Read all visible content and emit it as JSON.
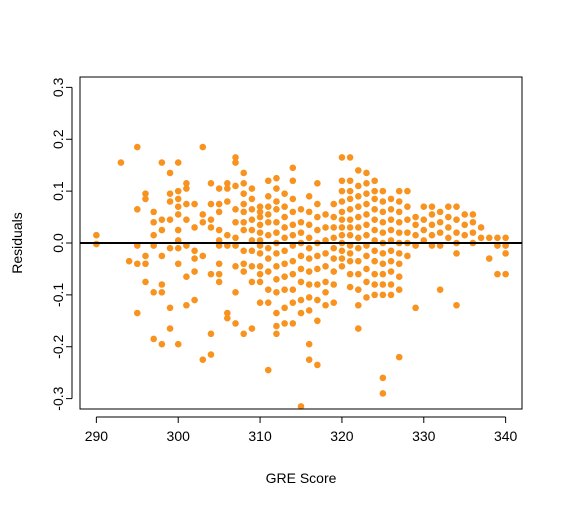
{
  "chart_data": {
    "type": "scatter",
    "title": "",
    "xlabel": "GRE Score",
    "ylabel": "Residuals",
    "xlim": [
      288,
      342
    ],
    "ylim": [
      -0.32,
      0.32
    ],
    "xticks": [
      290,
      300,
      310,
      320,
      330,
      340
    ],
    "yticks": [
      -0.3,
      -0.2,
      -0.1,
      0.0,
      0.1,
      0.2,
      0.3
    ],
    "xtick_labels": [
      "290",
      "300",
      "310",
      "320",
      "330",
      "340"
    ],
    "ytick_labels": [
      "-0.3",
      "-0.2",
      "-0.1",
      "0.0",
      "0.1",
      "0.2",
      "0.3"
    ],
    "grid": false,
    "legend": false,
    "reference_line": {
      "y": 0,
      "color": "#000000"
    },
    "point_color": "#F7931E",
    "points": [
      [
        290,
        0.015
      ],
      [
        290,
        -0.002
      ],
      [
        293,
        0.155
      ],
      [
        294,
        -0.035
      ],
      [
        295,
        0.185
      ],
      [
        295,
        0.065
      ],
      [
        295,
        -0.005
      ],
      [
        295,
        -0.04
      ],
      [
        295,
        -0.135
      ],
      [
        296,
        0.095
      ],
      [
        296,
        0.085
      ],
      [
        296,
        -0.025
      ],
      [
        296,
        -0.04
      ],
      [
        296,
        -0.075
      ],
      [
        297,
        0.06
      ],
      [
        297,
        0.04
      ],
      [
        297,
        0.015
      ],
      [
        297,
        -0.005
      ],
      [
        297,
        -0.095
      ],
      [
        297,
        -0.185
      ],
      [
        298,
        0.155
      ],
      [
        298,
        0.045
      ],
      [
        298,
        0.025
      ],
      [
        298,
        -0.025
      ],
      [
        298,
        -0.08
      ],
      [
        298,
        -0.095
      ],
      [
        298,
        -0.195
      ],
      [
        299,
        0.135
      ],
      [
        299,
        0.095
      ],
      [
        299,
        0.08
      ],
      [
        299,
        0.045
      ],
      [
        299,
        -0.01
      ],
      [
        299,
        -0.125
      ],
      [
        299,
        -0.165
      ],
      [
        300,
        0.155
      ],
      [
        300,
        0.1
      ],
      [
        300,
        0.085
      ],
      [
        300,
        0.07
      ],
      [
        300,
        0.055
      ],
      [
        300,
        0.025
      ],
      [
        300,
        0.005
      ],
      [
        300,
        -0.01
      ],
      [
        300,
        -0.04
      ],
      [
        300,
        -0.195
      ],
      [
        301,
        0.115
      ],
      [
        301,
        0.105
      ],
      [
        301,
        0.075
      ],
      [
        301,
        0.045
      ],
      [
        301,
        -0.005
      ],
      [
        301,
        -0.065
      ],
      [
        301,
        -0.12
      ],
      [
        302,
        0.075
      ],
      [
        302,
        0.03
      ],
      [
        302,
        -0.015
      ],
      [
        302,
        -0.03
      ],
      [
        302,
        -0.055
      ],
      [
        302,
        -0.11
      ],
      [
        303,
        0.185
      ],
      [
        303,
        0.055
      ],
      [
        303,
        0.04
      ],
      [
        303,
        -0.025
      ],
      [
        303,
        -0.225
      ],
      [
        304,
        0.115
      ],
      [
        304,
        0.075
      ],
      [
        304,
        0.045
      ],
      [
        304,
        0.03
      ],
      [
        304,
        -0.06
      ],
      [
        304,
        -0.175
      ],
      [
        304,
        -0.215
      ],
      [
        305,
        0.105
      ],
      [
        305,
        0.075
      ],
      [
        305,
        0.06
      ],
      [
        305,
        0.025
      ],
      [
        305,
        0.005
      ],
      [
        305,
        -0.005
      ],
      [
        305,
        -0.04
      ],
      [
        305,
        -0.06
      ],
      [
        305,
        -0.075
      ],
      [
        306,
        0.115
      ],
      [
        306,
        0.105
      ],
      [
        306,
        0.08
      ],
      [
        306,
        0.015
      ],
      [
        306,
        -0.005
      ],
      [
        306,
        -0.135
      ],
      [
        306,
        -0.145
      ],
      [
        307,
        0.165
      ],
      [
        307,
        0.155
      ],
      [
        307,
        0.11
      ],
      [
        307,
        0.065
      ],
      [
        307,
        0.04
      ],
      [
        307,
        0.01
      ],
      [
        307,
        -0.005
      ],
      [
        307,
        -0.045
      ],
      [
        307,
        -0.095
      ],
      [
        307,
        -0.155
      ],
      [
        308,
        0.135
      ],
      [
        308,
        0.115
      ],
      [
        308,
        0.095
      ],
      [
        308,
        0.075
      ],
      [
        308,
        0.06
      ],
      [
        308,
        0.04
      ],
      [
        308,
        0.025
      ],
      [
        308,
        -0.015
      ],
      [
        308,
        -0.04
      ],
      [
        308,
        -0.055
      ],
      [
        308,
        -0.175
      ],
      [
        309,
        0.105
      ],
      [
        309,
        0.085
      ],
      [
        309,
        0.065
      ],
      [
        309,
        0.045
      ],
      [
        309,
        0.025
      ],
      [
        309,
        0.005
      ],
      [
        309,
        -0.015
      ],
      [
        309,
        -0.045
      ],
      [
        309,
        -0.075
      ],
      [
        309,
        -0.165
      ],
      [
        310,
        0.07
      ],
      [
        310,
        0.06
      ],
      [
        310,
        0.05
      ],
      [
        310,
        0.035
      ],
      [
        310,
        0.02
      ],
      [
        310,
        0.005
      ],
      [
        310,
        -0.005
      ],
      [
        310,
        -0.02
      ],
      [
        310,
        -0.045
      ],
      [
        310,
        -0.06
      ],
      [
        310,
        -0.075
      ],
      [
        310,
        -0.115
      ],
      [
        311,
        0.12
      ],
      [
        311,
        0.09
      ],
      [
        311,
        0.07
      ],
      [
        311,
        0.055
      ],
      [
        311,
        0.04
      ],
      [
        311,
        0.015
      ],
      [
        311,
        -0.01
      ],
      [
        311,
        -0.03
      ],
      [
        311,
        -0.055
      ],
      [
        311,
        -0.09
      ],
      [
        311,
        -0.115
      ],
      [
        311,
        -0.245
      ],
      [
        312,
        0.125
      ],
      [
        312,
        0.105
      ],
      [
        312,
        0.08
      ],
      [
        312,
        0.065
      ],
      [
        312,
        0.04
      ],
      [
        312,
        0.02
      ],
      [
        312,
        0.0
      ],
      [
        312,
        -0.02
      ],
      [
        312,
        -0.045
      ],
      [
        312,
        -0.07
      ],
      [
        312,
        -0.095
      ],
      [
        312,
        -0.135
      ],
      [
        312,
        -0.16
      ],
      [
        312,
        -0.175
      ],
      [
        313,
        0.095
      ],
      [
        313,
        0.07
      ],
      [
        313,
        0.05
      ],
      [
        313,
        0.03
      ],
      [
        313,
        0.01
      ],
      [
        313,
        -0.015
      ],
      [
        313,
        -0.04
      ],
      [
        313,
        -0.065
      ],
      [
        313,
        -0.09
      ],
      [
        313,
        -0.125
      ],
      [
        313,
        -0.155
      ],
      [
        314,
        0.145
      ],
      [
        314,
        0.12
      ],
      [
        314,
        0.085
      ],
      [
        314,
        0.06
      ],
      [
        314,
        0.035
      ],
      [
        314,
        0.015
      ],
      [
        314,
        -0.005
      ],
      [
        314,
        -0.035
      ],
      [
        314,
        -0.06
      ],
      [
        314,
        -0.09
      ],
      [
        314,
        -0.115
      ],
      [
        314,
        -0.155
      ],
      [
        315,
        0.065
      ],
      [
        315,
        0.04
      ],
      [
        315,
        0.02
      ],
      [
        315,
        0.0
      ],
      [
        315,
        -0.025
      ],
      [
        315,
        -0.05
      ],
      [
        315,
        -0.075
      ],
      [
        315,
        -0.11
      ],
      [
        315,
        -0.135
      ],
      [
        315,
        -0.315
      ],
      [
        316,
        0.09
      ],
      [
        316,
        0.06
      ],
      [
        316,
        0.035
      ],
      [
        316,
        0.01
      ],
      [
        316,
        -0.01
      ],
      [
        316,
        -0.03
      ],
      [
        316,
        -0.055
      ],
      [
        316,
        -0.08
      ],
      [
        316,
        -0.105
      ],
      [
        316,
        -0.13
      ],
      [
        316,
        -0.195
      ],
      [
        316,
        -0.225
      ],
      [
        317,
        0.115
      ],
      [
        317,
        0.075
      ],
      [
        317,
        0.05
      ],
      [
        317,
        0.025
      ],
      [
        317,
        0.0
      ],
      [
        317,
        -0.025
      ],
      [
        317,
        -0.05
      ],
      [
        317,
        -0.08
      ],
      [
        317,
        -0.11
      ],
      [
        317,
        -0.15
      ],
      [
        317,
        -0.235
      ],
      [
        318,
        0.055
      ],
      [
        318,
        0.03
      ],
      [
        318,
        0.005
      ],
      [
        318,
        -0.02
      ],
      [
        318,
        -0.045
      ],
      [
        318,
        -0.075
      ],
      [
        318,
        -0.095
      ],
      [
        318,
        -0.12
      ],
      [
        319,
        0.075
      ],
      [
        319,
        0.05
      ],
      [
        319,
        0.03
      ],
      [
        319,
        0.01
      ],
      [
        319,
        -0.01
      ],
      [
        319,
        -0.03
      ],
      [
        319,
        -0.055
      ],
      [
        319,
        -0.08
      ],
      [
        319,
        -0.115
      ],
      [
        320,
        0.165
      ],
      [
        320,
        0.12
      ],
      [
        320,
        0.1
      ],
      [
        320,
        0.08
      ],
      [
        320,
        0.06
      ],
      [
        320,
        0.045
      ],
      [
        320,
        0.03
      ],
      [
        320,
        0.015
      ],
      [
        320,
        0.0
      ],
      [
        320,
        -0.015
      ],
      [
        320,
        -0.03
      ],
      [
        320,
        -0.045
      ],
      [
        321,
        0.165
      ],
      [
        321,
        0.12
      ],
      [
        321,
        0.1
      ],
      [
        321,
        0.085
      ],
      [
        321,
        0.065
      ],
      [
        321,
        0.045
      ],
      [
        321,
        0.03
      ],
      [
        321,
        0.015
      ],
      [
        321,
        -0.005
      ],
      [
        321,
        -0.02
      ],
      [
        321,
        -0.035
      ],
      [
        321,
        -0.06
      ],
      [
        321,
        -0.085
      ],
      [
        322,
        0.14
      ],
      [
        322,
        0.11
      ],
      [
        322,
        0.09
      ],
      [
        322,
        0.07
      ],
      [
        322,
        0.05
      ],
      [
        322,
        0.03
      ],
      [
        322,
        0.01
      ],
      [
        322,
        -0.01
      ],
      [
        322,
        -0.035
      ],
      [
        322,
        -0.06
      ],
      [
        322,
        -0.09
      ],
      [
        322,
        -0.12
      ],
      [
        322,
        -0.165
      ],
      [
        323,
        0.135
      ],
      [
        323,
        0.115
      ],
      [
        323,
        0.095
      ],
      [
        323,
        0.075
      ],
      [
        323,
        0.055
      ],
      [
        323,
        0.035
      ],
      [
        323,
        0.015
      ],
      [
        323,
        -0.005
      ],
      [
        323,
        -0.025
      ],
      [
        323,
        -0.05
      ],
      [
        323,
        -0.075
      ],
      [
        323,
        -0.105
      ],
      [
        324,
        0.12
      ],
      [
        324,
        0.1
      ],
      [
        324,
        0.085
      ],
      [
        324,
        0.065
      ],
      [
        324,
        0.045
      ],
      [
        324,
        0.025
      ],
      [
        324,
        0.005
      ],
      [
        324,
        -0.015
      ],
      [
        324,
        -0.035
      ],
      [
        324,
        -0.06
      ],
      [
        324,
        -0.08
      ],
      [
        324,
        -0.1
      ],
      [
        325,
        0.1
      ],
      [
        325,
        0.08
      ],
      [
        325,
        0.06
      ],
      [
        325,
        0.04
      ],
      [
        325,
        0.02
      ],
      [
        325,
        0.0
      ],
      [
        325,
        -0.02
      ],
      [
        325,
        -0.04
      ],
      [
        325,
        -0.06
      ],
      [
        325,
        -0.08
      ],
      [
        325,
        -0.1
      ],
      [
        325,
        -0.26
      ],
      [
        325,
        -0.29
      ],
      [
        326,
        0.085
      ],
      [
        326,
        0.065
      ],
      [
        326,
        0.045
      ],
      [
        326,
        0.025
      ],
      [
        326,
        0.005
      ],
      [
        326,
        -0.015
      ],
      [
        326,
        -0.035
      ],
      [
        326,
        -0.055
      ],
      [
        326,
        -0.08
      ],
      [
        326,
        -0.1
      ],
      [
        327,
        0.1
      ],
      [
        327,
        0.08
      ],
      [
        327,
        0.06
      ],
      [
        327,
        0.04
      ],
      [
        327,
        0.02
      ],
      [
        327,
        0.0
      ],
      [
        327,
        -0.02
      ],
      [
        327,
        -0.04
      ],
      [
        327,
        -0.065
      ],
      [
        327,
        -0.09
      ],
      [
        327,
        -0.22
      ],
      [
        328,
        0.1
      ],
      [
        328,
        0.07
      ],
      [
        328,
        0.045
      ],
      [
        328,
        0.02
      ],
      [
        328,
        0.0
      ],
      [
        328,
        -0.025
      ],
      [
        329,
        0.05
      ],
      [
        329,
        0.035
      ],
      [
        329,
        0.015
      ],
      [
        329,
        -0.005
      ],
      [
        329,
        -0.125
      ],
      [
        330,
        0.07
      ],
      [
        330,
        0.045
      ],
      [
        330,
        0.025
      ],
      [
        330,
        0.005
      ],
      [
        331,
        0.07
      ],
      [
        331,
        0.055
      ],
      [
        331,
        0.035
      ],
      [
        331,
        0.015
      ],
      [
        331,
        -0.005
      ],
      [
        332,
        0.06
      ],
      [
        332,
        0.04
      ],
      [
        332,
        0.02
      ],
      [
        332,
        -0.005
      ],
      [
        332,
        -0.09
      ],
      [
        333,
        0.07
      ],
      [
        333,
        0.05
      ],
      [
        333,
        0.03
      ],
      [
        333,
        0.01
      ],
      [
        334,
        0.07
      ],
      [
        334,
        0.045
      ],
      [
        334,
        0.02
      ],
      [
        334,
        0.0
      ],
      [
        334,
        -0.02
      ],
      [
        334,
        -0.12
      ],
      [
        335,
        0.055
      ],
      [
        335,
        0.035
      ],
      [
        335,
        0.015
      ],
      [
        336,
        0.055
      ],
      [
        336,
        0.04
      ],
      [
        336,
        0.02
      ],
      [
        336,
        0.0
      ],
      [
        337,
        0.03
      ],
      [
        337,
        0.01
      ],
      [
        338,
        0.01
      ],
      [
        338,
        -0.03
      ],
      [
        339,
        0.01
      ],
      [
        339,
        -0.005
      ],
      [
        339,
        -0.06
      ],
      [
        340,
        0.01
      ],
      [
        340,
        -0.005
      ],
      [
        340,
        -0.02
      ],
      [
        340,
        -0.06
      ]
    ]
  }
}
